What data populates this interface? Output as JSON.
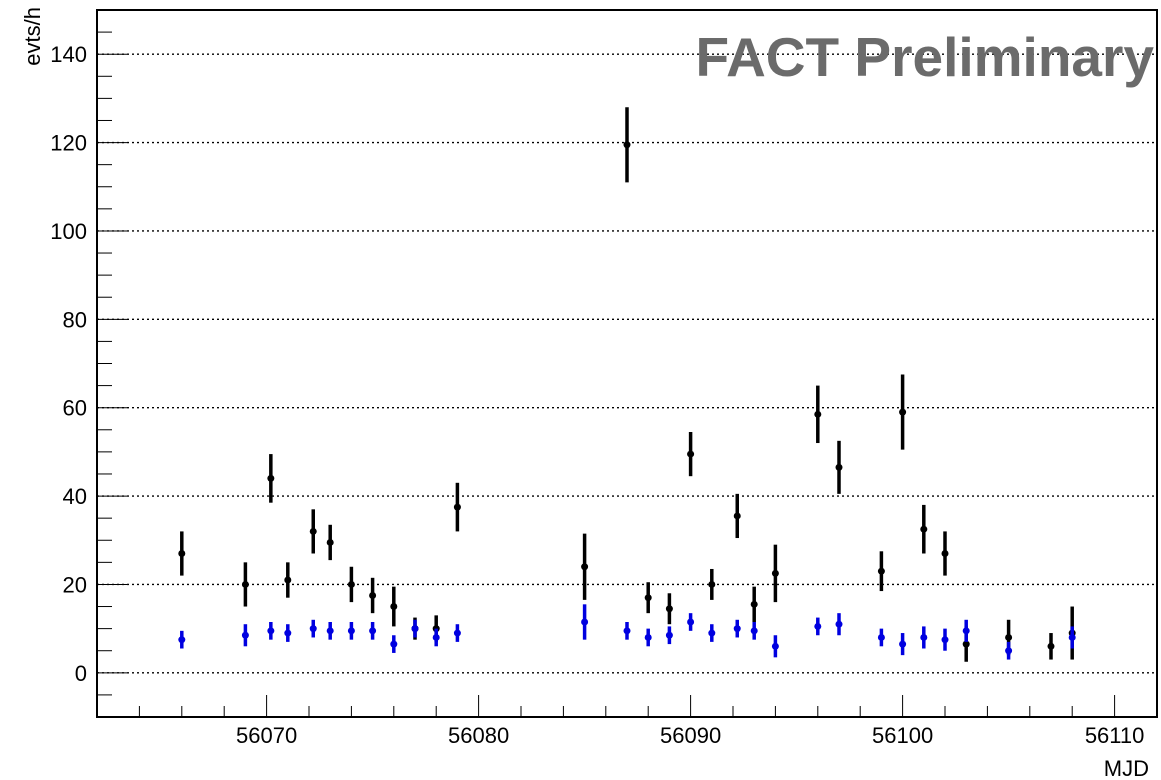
{
  "chart_data": {
    "type": "scatter",
    "title": "",
    "xlabel": "MJD",
    "ylabel": "evts/h",
    "watermark": "FACT Preliminary",
    "xlim": [
      56062,
      56112
    ],
    "ylim": [
      -10,
      150
    ],
    "x_ticks": [
      56070,
      56080,
      56090,
      56100,
      56110
    ],
    "y_ticks": [
      0,
      20,
      40,
      60,
      80,
      100,
      120,
      140
    ],
    "grid": "horizontal-dotted",
    "series": [
      {
        "color": "#000000",
        "points": [
          {
            "x": 56066,
            "y": 27,
            "err": 5
          },
          {
            "x": 56069,
            "y": 20,
            "err": 5
          },
          {
            "x": 56070.2,
            "y": 44,
            "err": 5.5
          },
          {
            "x": 56071,
            "y": 21,
            "err": 4
          },
          {
            "x": 56072.2,
            "y": 32,
            "err": 5
          },
          {
            "x": 56073,
            "y": 29.5,
            "err": 4
          },
          {
            "x": 56074,
            "y": 20,
            "err": 4
          },
          {
            "x": 56075,
            "y": 17.5,
            "err": 4
          },
          {
            "x": 56076,
            "y": 15,
            "err": 4.5
          },
          {
            "x": 56077,
            "y": 10,
            "err": 2.5
          },
          {
            "x": 56078,
            "y": 10,
            "err": 3
          },
          {
            "x": 56079,
            "y": 37.5,
            "err": 5.5
          },
          {
            "x": 56085,
            "y": 24,
            "err": 7.5
          },
          {
            "x": 56087,
            "y": 119.5,
            "err": 8.5
          },
          {
            "x": 56088,
            "y": 17,
            "err": 3.5
          },
          {
            "x": 56089,
            "y": 14.5,
            "err": 3.5
          },
          {
            "x": 56090,
            "y": 49.5,
            "err": 5
          },
          {
            "x": 56091,
            "y": 20,
            "err": 3.5
          },
          {
            "x": 56092.2,
            "y": 35.5,
            "err": 5
          },
          {
            "x": 56093,
            "y": 15.5,
            "err": 4
          },
          {
            "x": 56094,
            "y": 22.5,
            "err": 6.5
          },
          {
            "x": 56096,
            "y": 58.5,
            "err": 6.5
          },
          {
            "x": 56097,
            "y": 46.5,
            "err": 6
          },
          {
            "x": 56099,
            "y": 23,
            "err": 4.5
          },
          {
            "x": 56100,
            "y": 59,
            "err": 8.5
          },
          {
            "x": 56101,
            "y": 32.5,
            "err": 5.5
          },
          {
            "x": 56102,
            "y": 27,
            "err": 5
          },
          {
            "x": 56103,
            "y": 6.5,
            "err": 4
          },
          {
            "x": 56105,
            "y": 8,
            "err": 4
          },
          {
            "x": 56107,
            "y": 6,
            "err": 3
          },
          {
            "x": 56108,
            "y": 9,
            "err": 6
          }
        ]
      },
      {
        "color": "#0000e0",
        "points": [
          {
            "x": 56066,
            "y": 7.5,
            "err": 2
          },
          {
            "x": 56069,
            "y": 8.5,
            "err": 2.5
          },
          {
            "x": 56070.2,
            "y": 9.5,
            "err": 2
          },
          {
            "x": 56071,
            "y": 9,
            "err": 2
          },
          {
            "x": 56072.2,
            "y": 10,
            "err": 2
          },
          {
            "x": 56073,
            "y": 9.5,
            "err": 2
          },
          {
            "x": 56074,
            "y": 9.5,
            "err": 2
          },
          {
            "x": 56075,
            "y": 9.5,
            "err": 2
          },
          {
            "x": 56076,
            "y": 6.5,
            "err": 2
          },
          {
            "x": 56077,
            "y": 10,
            "err": 2
          },
          {
            "x": 56078,
            "y": 8,
            "err": 2
          },
          {
            "x": 56079,
            "y": 9,
            "err": 2
          },
          {
            "x": 56085,
            "y": 11.5,
            "err": 4
          },
          {
            "x": 56087,
            "y": 9.5,
            "err": 2
          },
          {
            "x": 56088,
            "y": 8,
            "err": 2
          },
          {
            "x": 56089,
            "y": 8.5,
            "err": 2
          },
          {
            "x": 56090,
            "y": 11.5,
            "err": 2
          },
          {
            "x": 56091,
            "y": 9,
            "err": 2
          },
          {
            "x": 56092.2,
            "y": 10,
            "err": 2
          },
          {
            "x": 56093,
            "y": 9.5,
            "err": 2
          },
          {
            "x": 56094,
            "y": 6,
            "err": 2.5
          },
          {
            "x": 56096,
            "y": 10.5,
            "err": 2
          },
          {
            "x": 56097,
            "y": 11,
            "err": 2.5
          },
          {
            "x": 56099,
            "y": 8,
            "err": 2
          },
          {
            "x": 56100,
            "y": 6.5,
            "err": 2.5
          },
          {
            "x": 56101,
            "y": 8,
            "err": 2.5
          },
          {
            "x": 56102,
            "y": 7.5,
            "err": 2.5
          },
          {
            "x": 56103,
            "y": 9.5,
            "err": 2.5
          },
          {
            "x": 56105,
            "y": 5,
            "err": 2
          },
          {
            "x": 56108,
            "y": 8,
            "err": 2.5
          }
        ]
      }
    ]
  }
}
